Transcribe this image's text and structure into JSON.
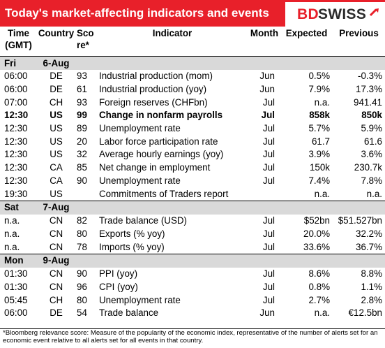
{
  "header": {
    "title": "Today's market-affecting indicators and events",
    "logo_text_red": "BD",
    "logo_text_dark": "SWISS",
    "brand_color": "#e8202a"
  },
  "columns": {
    "time": "Time (GMT)",
    "country": "Country",
    "score": "Score*",
    "indicator": "Indicator",
    "month": "Month",
    "expected": "Expected",
    "previous": "Previous"
  },
  "sections": [
    {
      "day": "Fri",
      "date": "6-Aug",
      "rows": [
        {
          "time": "06:00",
          "country": "DE",
          "score": "93",
          "indicator": "Industrial production (mom)",
          "month": "Jun",
          "expected": "0.5%",
          "previous": "-0.3%",
          "bold": false
        },
        {
          "time": "06:00",
          "country": "DE",
          "score": "61",
          "indicator": "Industrial production (yoy)",
          "month": "Jun",
          "expected": "7.9%",
          "previous": "17.3%",
          "bold": false
        },
        {
          "time": "07:00",
          "country": "CH",
          "score": "93",
          "indicator": "Foreign reserves (CHFbn)",
          "month": "Jul",
          "expected": "n.a.",
          "previous": "941.41",
          "bold": false
        },
        {
          "time": "12:30",
          "country": "US",
          "score": "99",
          "indicator": "Change in nonfarm payrolls",
          "month": "Jul",
          "expected": "858k",
          "previous": "850k",
          "bold": true
        },
        {
          "time": "12:30",
          "country": "US",
          "score": "89",
          "indicator": "Unemployment rate",
          "month": "Jul",
          "expected": "5.7%",
          "previous": "5.9%",
          "bold": false
        },
        {
          "time": "12:30",
          "country": "US",
          "score": "20",
          "indicator": "Labor force participation rate",
          "month": "Jul",
          "expected": "61.7",
          "previous": "61.6",
          "bold": false
        },
        {
          "time": "12:30",
          "country": "US",
          "score": "32",
          "indicator": "Average hourly earnings (yoy)",
          "month": "Jul",
          "expected": "3.9%",
          "previous": "3.6%",
          "bold": false
        },
        {
          "time": "12:30",
          "country": "CA",
          "score": "85",
          "indicator": "Net change in employment",
          "month": "Jul",
          "expected": "150k",
          "previous": "230.7k",
          "bold": false
        },
        {
          "time": "12:30",
          "country": "CA",
          "score": "90",
          "indicator": "Unemployment rate",
          "month": "Jul",
          "expected": "7.4%",
          "previous": "7.8%",
          "bold": false
        },
        {
          "time": "19:30",
          "country": "US",
          "score": "",
          "indicator": "Commitments of Traders  report",
          "month": "",
          "expected": "n.a.",
          "previous": "n.a.",
          "bold": false
        }
      ]
    },
    {
      "day": "Sat",
      "date": "7-Aug",
      "rows": [
        {
          "time": "n.a.",
          "country": "CN",
          "score": "82",
          "indicator": "Trade balance (USD)",
          "month": "Jul",
          "expected": "$52bn",
          "previous": "$51.527bn",
          "bold": false
        },
        {
          "time": "n.a.",
          "country": "CN",
          "score": "80",
          "indicator": "Exports (% yoy)",
          "month": "Jul",
          "expected": "20.0%",
          "previous": "32.2%",
          "bold": false
        },
        {
          "time": "n.a.",
          "country": "CN",
          "score": "78",
          "indicator": "Imports (% yoy)",
          "month": "Jul",
          "expected": "33.6%",
          "previous": "36.7%",
          "bold": false
        }
      ]
    },
    {
      "day": "Mon",
      "date": "9-Aug",
      "rows": [
        {
          "time": "01:30",
          "country": "CN",
          "score": "90",
          "indicator": "PPI (yoy)",
          "month": "Jul",
          "expected": "8.6%",
          "previous": "8.8%",
          "bold": false
        },
        {
          "time": "01:30",
          "country": "CN",
          "score": "96",
          "indicator": "CPI (yoy)",
          "month": "Jul",
          "expected": "0.8%",
          "previous": "1.1%",
          "bold": false
        },
        {
          "time": "05:45",
          "country": "CH",
          "score": "80",
          "indicator": "Unemployment rate",
          "month": "Jul",
          "expected": "2.7%",
          "previous": "2.8%",
          "bold": false
        },
        {
          "time": "06:00",
          "country": "DE",
          "score": "54",
          "indicator": "Trade balance",
          "month": "Jun",
          "expected": "n.a.",
          "previous": "€12.5bn",
          "bold": false
        }
      ]
    }
  ],
  "footnote": "*Bloomberg relevance score: Measure of the popularity of the economic index, representative of the number of alerts set for an economic event relative to all alerts set for all events in that country."
}
